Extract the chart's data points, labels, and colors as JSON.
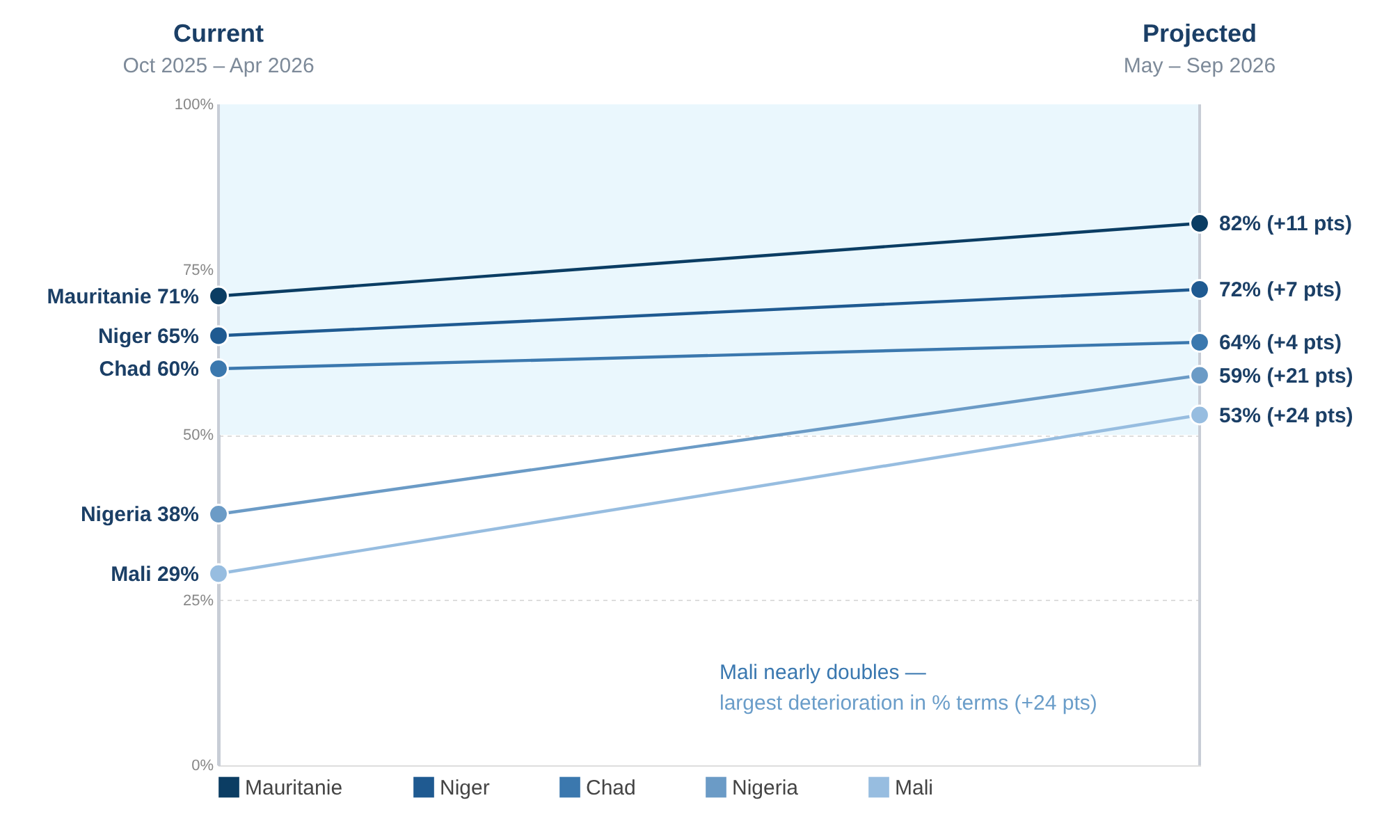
{
  "chart_data": {
    "type": "line",
    "categories": [
      "Current",
      "Projected"
    ],
    "series": [
      {
        "name": "Mauritanie",
        "color": "#0b3d63",
        "values": [
          71,
          82
        ],
        "value_labels": [
          "71%",
          "82% (+11 pts)"
        ]
      },
      {
        "name": "Niger",
        "color": "#1f5a91",
        "values": [
          65,
          72
        ],
        "value_labels": [
          "65%",
          "72% (+7 pts)"
        ]
      },
      {
        "name": "Chad",
        "color": "#3b78ae",
        "values": [
          60,
          64
        ],
        "value_labels": [
          "60%",
          "64% (+4 pts)"
        ]
      },
      {
        "name": "Nigeria",
        "color": "#6b9bc6",
        "values": [
          38,
          59
        ],
        "value_labels": [
          "38%",
          "59% (+21 pts)"
        ]
      },
      {
        "name": "Mali",
        "color": "#97bde0",
        "values": [
          29,
          53
        ],
        "value_labels": [
          "29%",
          "53% (+24 pts)"
        ]
      }
    ],
    "ylim": [
      0,
      100
    ],
    "yticks": [
      {
        "value": 0,
        "label": "0%"
      },
      {
        "value": 25,
        "label": "25%"
      },
      {
        "value": 50,
        "label": "50%"
      },
      {
        "value": 75,
        "label": "75%"
      },
      {
        "value": 100,
        "label": "100%"
      }
    ],
    "bands": [
      {
        "axis": "y",
        "from": 50,
        "to": 100,
        "color": "#eaf7fd"
      }
    ],
    "annotations": [
      "Oct 2025 – Apr 2026",
      "May – Sep 2026",
      "Mali nearly doubles —",
      "largest deterioration in % terms (+24 pts)"
    ],
    "grid": true,
    "legend": "bottom",
    "marker": "circle",
    "line_style": "solid"
  }
}
